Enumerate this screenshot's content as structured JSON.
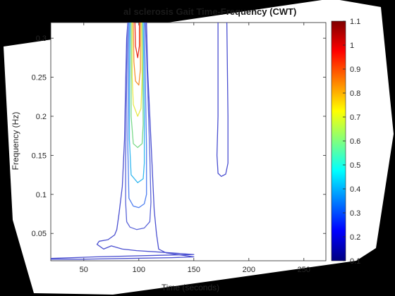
{
  "chart_data": {
    "type": "contour",
    "title": "al sclerosis Gait Time-Frequency (CWT)",
    "xlabel": "Time (seconds)",
    "ylabel": "Frequency (Hz)",
    "xlim": [
      20,
      270
    ],
    "ylim": [
      0.015,
      0.32
    ],
    "xticks": [
      "50",
      "100",
      "150",
      "200",
      "250"
    ],
    "yticks": [
      "0.05",
      "0.1",
      "0.15",
      "0.2",
      "0.25",
      "0.3"
    ],
    "colorbar": {
      "range": [
        0.1,
        1.1
      ],
      "ticks": [
        "0.1",
        "0.2",
        "0.3",
        "0.4",
        "0.5",
        "0.6",
        "0.7",
        "0.8",
        "0.9",
        "1",
        "1.1"
      ]
    },
    "contours": [
      {
        "level": 0.1,
        "color": "#4a4fd0",
        "points": [
          [
            20,
            0.018
          ],
          [
            60,
            0.02
          ],
          [
            120,
            0.022
          ],
          [
            150,
            0.023
          ],
          [
            120,
            0.026
          ],
          [
            98,
            0.028
          ],
          [
            85,
            0.03
          ],
          [
            75,
            0.034
          ],
          [
            68,
            0.03
          ],
          [
            62,
            0.036
          ],
          [
            64,
            0.04
          ],
          [
            72,
            0.042
          ],
          [
            78,
            0.048
          ],
          [
            80,
            0.055
          ],
          [
            82,
            0.075
          ],
          [
            85,
            0.11
          ],
          [
            87,
            0.17
          ],
          [
            88,
            0.24
          ],
          [
            89,
            0.3
          ],
          [
            90,
            0.32
          ]
        ]
      },
      {
        "level": 0.1,
        "color": "#4a4fd0",
        "points": [
          [
            20,
            0.017
          ],
          [
            50,
            0.017
          ],
          [
            90,
            0.018
          ],
          [
            130,
            0.019
          ],
          [
            150,
            0.02
          ],
          [
            140,
            0.022
          ],
          [
            125,
            0.025
          ],
          [
            118,
            0.03
          ],
          [
            116,
            0.05
          ],
          [
            114,
            0.08
          ],
          [
            112,
            0.14
          ],
          [
            110,
            0.2
          ],
          [
            108,
            0.26
          ],
          [
            107,
            0.32
          ]
        ]
      },
      {
        "level": 0.15,
        "color": "#5a64d8",
        "points": [
          [
            90,
            0.32
          ],
          [
            89,
            0.24
          ],
          [
            88,
            0.15
          ],
          [
            88,
            0.09
          ],
          [
            89,
            0.065
          ],
          [
            92,
            0.058
          ],
          [
            98,
            0.055
          ],
          [
            105,
            0.057
          ],
          [
            110,
            0.065
          ],
          [
            111,
            0.09
          ],
          [
            110,
            0.15
          ],
          [
            108,
            0.24
          ],
          [
            106,
            0.32
          ]
        ]
      },
      {
        "level": 0.2,
        "color": "#4f7ff0",
        "points": [
          [
            91,
            0.32
          ],
          [
            90.5,
            0.24
          ],
          [
            90,
            0.16
          ],
          [
            91,
            0.095
          ],
          [
            95,
            0.085
          ],
          [
            100,
            0.083
          ],
          [
            105,
            0.088
          ],
          [
            107,
            0.1
          ],
          [
            107,
            0.16
          ],
          [
            106,
            0.24
          ],
          [
            105,
            0.32
          ]
        ]
      },
      {
        "level": 0.3,
        "color": "#35b8f0",
        "points": [
          [
            92,
            0.32
          ],
          [
            91.5,
            0.24
          ],
          [
            91.5,
            0.17
          ],
          [
            93,
            0.125
          ],
          [
            99,
            0.115
          ],
          [
            104,
            0.12
          ],
          [
            105,
            0.14
          ],
          [
            105,
            0.2
          ],
          [
            104.5,
            0.27
          ],
          [
            104,
            0.32
          ]
        ]
      },
      {
        "level": 0.5,
        "color": "#7ad98a",
        "points": [
          [
            93,
            0.32
          ],
          [
            93,
            0.25
          ],
          [
            93,
            0.2
          ],
          [
            95,
            0.165
          ],
          [
            99,
            0.16
          ],
          [
            103,
            0.165
          ],
          [
            104,
            0.19
          ],
          [
            103.5,
            0.26
          ],
          [
            103,
            0.32
          ]
        ]
      },
      {
        "level": 0.7,
        "color": "#e8e84a",
        "points": [
          [
            94,
            0.32
          ],
          [
            94,
            0.25
          ],
          [
            95,
            0.215
          ],
          [
            99,
            0.2
          ],
          [
            102,
            0.21
          ],
          [
            103,
            0.25
          ],
          [
            102.5,
            0.32
          ]
        ]
      },
      {
        "level": 0.9,
        "color": "#f59030",
        "points": [
          [
            95,
            0.32
          ],
          [
            95.5,
            0.27
          ],
          [
            97,
            0.245
          ],
          [
            100,
            0.24
          ],
          [
            101.5,
            0.26
          ],
          [
            101.5,
            0.32
          ]
        ]
      },
      {
        "level": 1.0,
        "color": "#e83020",
        "points": [
          [
            96.5,
            0.32
          ],
          [
            97,
            0.29
          ],
          [
            99,
            0.275
          ],
          [
            100.5,
            0.29
          ],
          [
            100.5,
            0.32
          ]
        ]
      },
      {
        "level": 0.1,
        "color": "#4a4fd0",
        "points": [
          [
            172,
            0.32
          ],
          [
            172,
            0.2
          ],
          [
            171,
            0.15
          ],
          [
            172,
            0.127
          ],
          [
            175,
            0.123
          ],
          [
            179,
            0.126
          ],
          [
            181,
            0.14
          ],
          [
            181,
            0.2
          ],
          [
            180,
            0.32
          ]
        ]
      }
    ]
  }
}
